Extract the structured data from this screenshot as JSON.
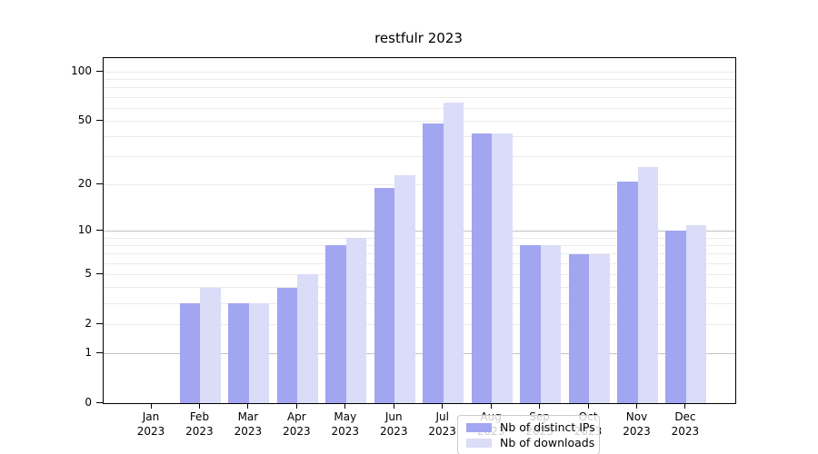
{
  "title": "restfulr 2023",
  "colors": {
    "ips_bar": "#a2a5f0",
    "downloads_bar": "#dadcf8",
    "grid_minor": "#ebebeb",
    "grid_major": "#c2c2c2",
    "axis": "#000000",
    "legend_border": "#cccccc"
  },
  "legend": {
    "items": [
      {
        "label": "Nb of distinct IPs",
        "series": "ips"
      },
      {
        "label": "Nb of downloads",
        "series": "downloads"
      }
    ]
  },
  "chart_data": {
    "type": "bar",
    "title": "restfulr 2023",
    "categories": [
      "Jan 2023",
      "Feb 2023",
      "Mar 2023",
      "Apr 2023",
      "May 2023",
      "Jun 2023",
      "Jul 2023",
      "Aug 2023",
      "Sep 2023",
      "Oct 2023",
      "Nov 2023",
      "Dec 2023"
    ],
    "series": [
      {
        "name": "Nb of distinct IPs",
        "color": "#a2a5f0",
        "values": [
          0,
          3,
          3,
          4,
          8,
          19,
          48,
          42,
          8,
          7,
          21,
          10
        ]
      },
      {
        "name": "Nb of downloads",
        "color": "#dadcf8",
        "values": [
          0,
          4,
          3,
          5,
          9,
          23,
          65,
          42,
          8,
          7,
          26,
          11
        ]
      }
    ],
    "xlabel": "",
    "ylabel": "",
    "yscale": "log1p",
    "ylim": [
      0,
      121
    ],
    "yticks": [
      0,
      1,
      2,
      5,
      10,
      20,
      50,
      100
    ],
    "minor_gridlines": [
      3,
      4,
      6,
      7,
      8,
      9,
      30,
      40,
      60,
      70,
      80,
      90
    ],
    "grid": "horizontal",
    "legend_position": "lower center"
  }
}
